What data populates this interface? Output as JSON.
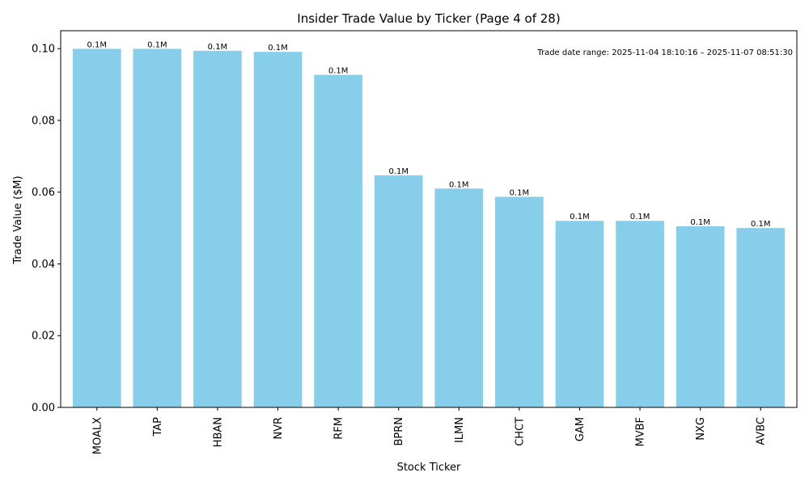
{
  "chart_data": {
    "type": "bar",
    "title": "Insider Trade Value by Ticker (Page 4 of 28)",
    "xlabel": "Stock Ticker",
    "ylabel": "Trade Value ($M)",
    "categories": [
      "MOALX",
      "TAP",
      "HBAN",
      "NVR",
      "RFM",
      "BPRN",
      "ILMN",
      "CHCT",
      "GAM",
      "MVBF",
      "NXG",
      "AVBC"
    ],
    "values": [
      0.09995,
      0.09995,
      0.0994,
      0.0991,
      0.0927,
      0.0647,
      0.061,
      0.0587,
      0.052,
      0.052,
      0.0505,
      0.05
    ],
    "data_labels": [
      "0.1M",
      "0.1M",
      "0.1M",
      "0.1M",
      "0.1M",
      "0.1M",
      "0.1M",
      "0.1M",
      "0.1M",
      "0.1M",
      "0.1M",
      "0.1M"
    ],
    "ylim": [
      0,
      0.105
    ],
    "yticks": [
      0.0,
      0.02,
      0.04,
      0.06,
      0.08,
      0.1
    ],
    "ytick_labels": [
      "0.00",
      "0.02",
      "0.04",
      "0.06",
      "0.08",
      "0.10"
    ],
    "annotation": "Trade date range: 2025-11-04 18:10:16 – 2025-11-07 08:51:30",
    "grid": false,
    "bar_color": "#87CEEB"
  }
}
